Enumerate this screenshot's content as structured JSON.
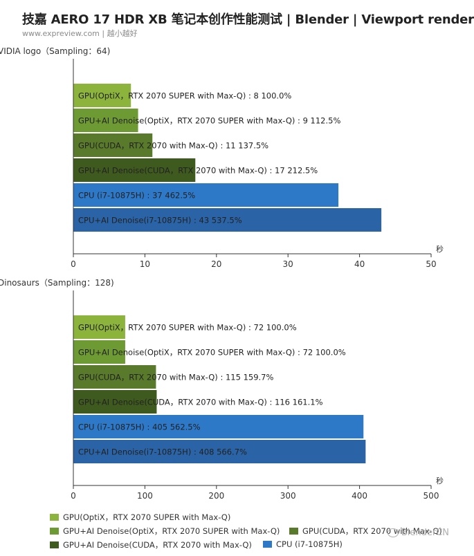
{
  "header": {
    "title": "技嘉 AERO 17 HDR XB 笔记本创作性能测试 | Blender | Viewport render",
    "subtitle": "www.expreview.com | 越小越好"
  },
  "colors": {
    "optix": "#8cb43c",
    "optix_denoise": "#6e9a34",
    "cuda": "#587a2a",
    "cuda_denoise": "#3f5a1e",
    "cpu": "#2e78c8",
    "cpu_denoise": "#2a63a6",
    "axis": "#333333"
  },
  "legend": {
    "items": [
      {
        "label": "GPU(OptiX，RTX 2070 SUPER with Max-Q)",
        "color": "#8cb43c"
      },
      {
        "label": "GPU+AI Denoise(OptiX，RTX 2070 SUPER with Max-Q)",
        "color": "#6e9a34"
      },
      {
        "label": "GPU(CUDA，RTX 2070 with Max-Q)",
        "color": "#587a2a"
      },
      {
        "label": "GPU+AI Denoise(CUDA，RTX 2070 with Max-Q)",
        "color": "#3f5a1e"
      },
      {
        "label": "CPU (i7-10875H)",
        "color": "#2e78c8"
      }
    ]
  },
  "watermark": "BlenderCN",
  "chart_data": [
    {
      "type": "bar",
      "orientation": "horizontal",
      "title": "VIDIA logo（Sampling：64)",
      "xlabel": "秒",
      "xlim": [
        0,
        50
      ],
      "xticks": [
        0,
        10,
        20,
        30,
        40,
        50
      ],
      "grid": false,
      "categories": [
        "GPU(OptiX，RTX 2070 SUPER with Max-Q)",
        "GPU+AI Denoise(OptiX，RTX 2070 SUPER with Max-Q)",
        "GPU(CUDA，RTX 2070 with Max-Q)",
        "GPU+AI Denoise(CUDA，RTX 2070 with Max-Q)",
        "CPU (i7-10875H)",
        "CPU+AI Denoise(i7-10875H)"
      ],
      "values": [
        8,
        9,
        11,
        17,
        37,
        43
      ],
      "percents": [
        "100.0%",
        "112.5%",
        "137.5%",
        "212.5%",
        "462.5%",
        "537.5%"
      ],
      "colors": [
        "#8cb43c",
        "#6e9a34",
        "#587a2a",
        "#3f5a1e",
        "#2e78c8",
        "#2a63a6"
      ]
    },
    {
      "type": "bar",
      "orientation": "horizontal",
      "title": "Dinosaurs（Sampling：128)",
      "xlabel": "秒",
      "xlim": [
        0,
        500
      ],
      "xticks": [
        0,
        100,
        200,
        300,
        400,
        500
      ],
      "grid": false,
      "categories": [
        "GPU(OptiX，RTX 2070 SUPER with Max-Q)",
        "GPU+AI Denoise(OptiX，RTX 2070 SUPER with Max-Q)",
        "GPU(CUDA，RTX 2070 with Max-Q)",
        "GPU+AI Denoise(CUDA，RTX 2070 with Max-Q)",
        "CPU (i7-10875H)",
        "CPU+AI Denoise(i7-10875H)"
      ],
      "values": [
        72,
        72,
        115,
        116,
        405,
        408
      ],
      "percents": [
        "100.0%",
        "100.0%",
        "159.7%",
        "161.1%",
        "562.5%",
        "566.7%"
      ],
      "colors": [
        "#8cb43c",
        "#6e9a34",
        "#587a2a",
        "#3f5a1e",
        "#2e78c8",
        "#2a63a6"
      ]
    }
  ]
}
